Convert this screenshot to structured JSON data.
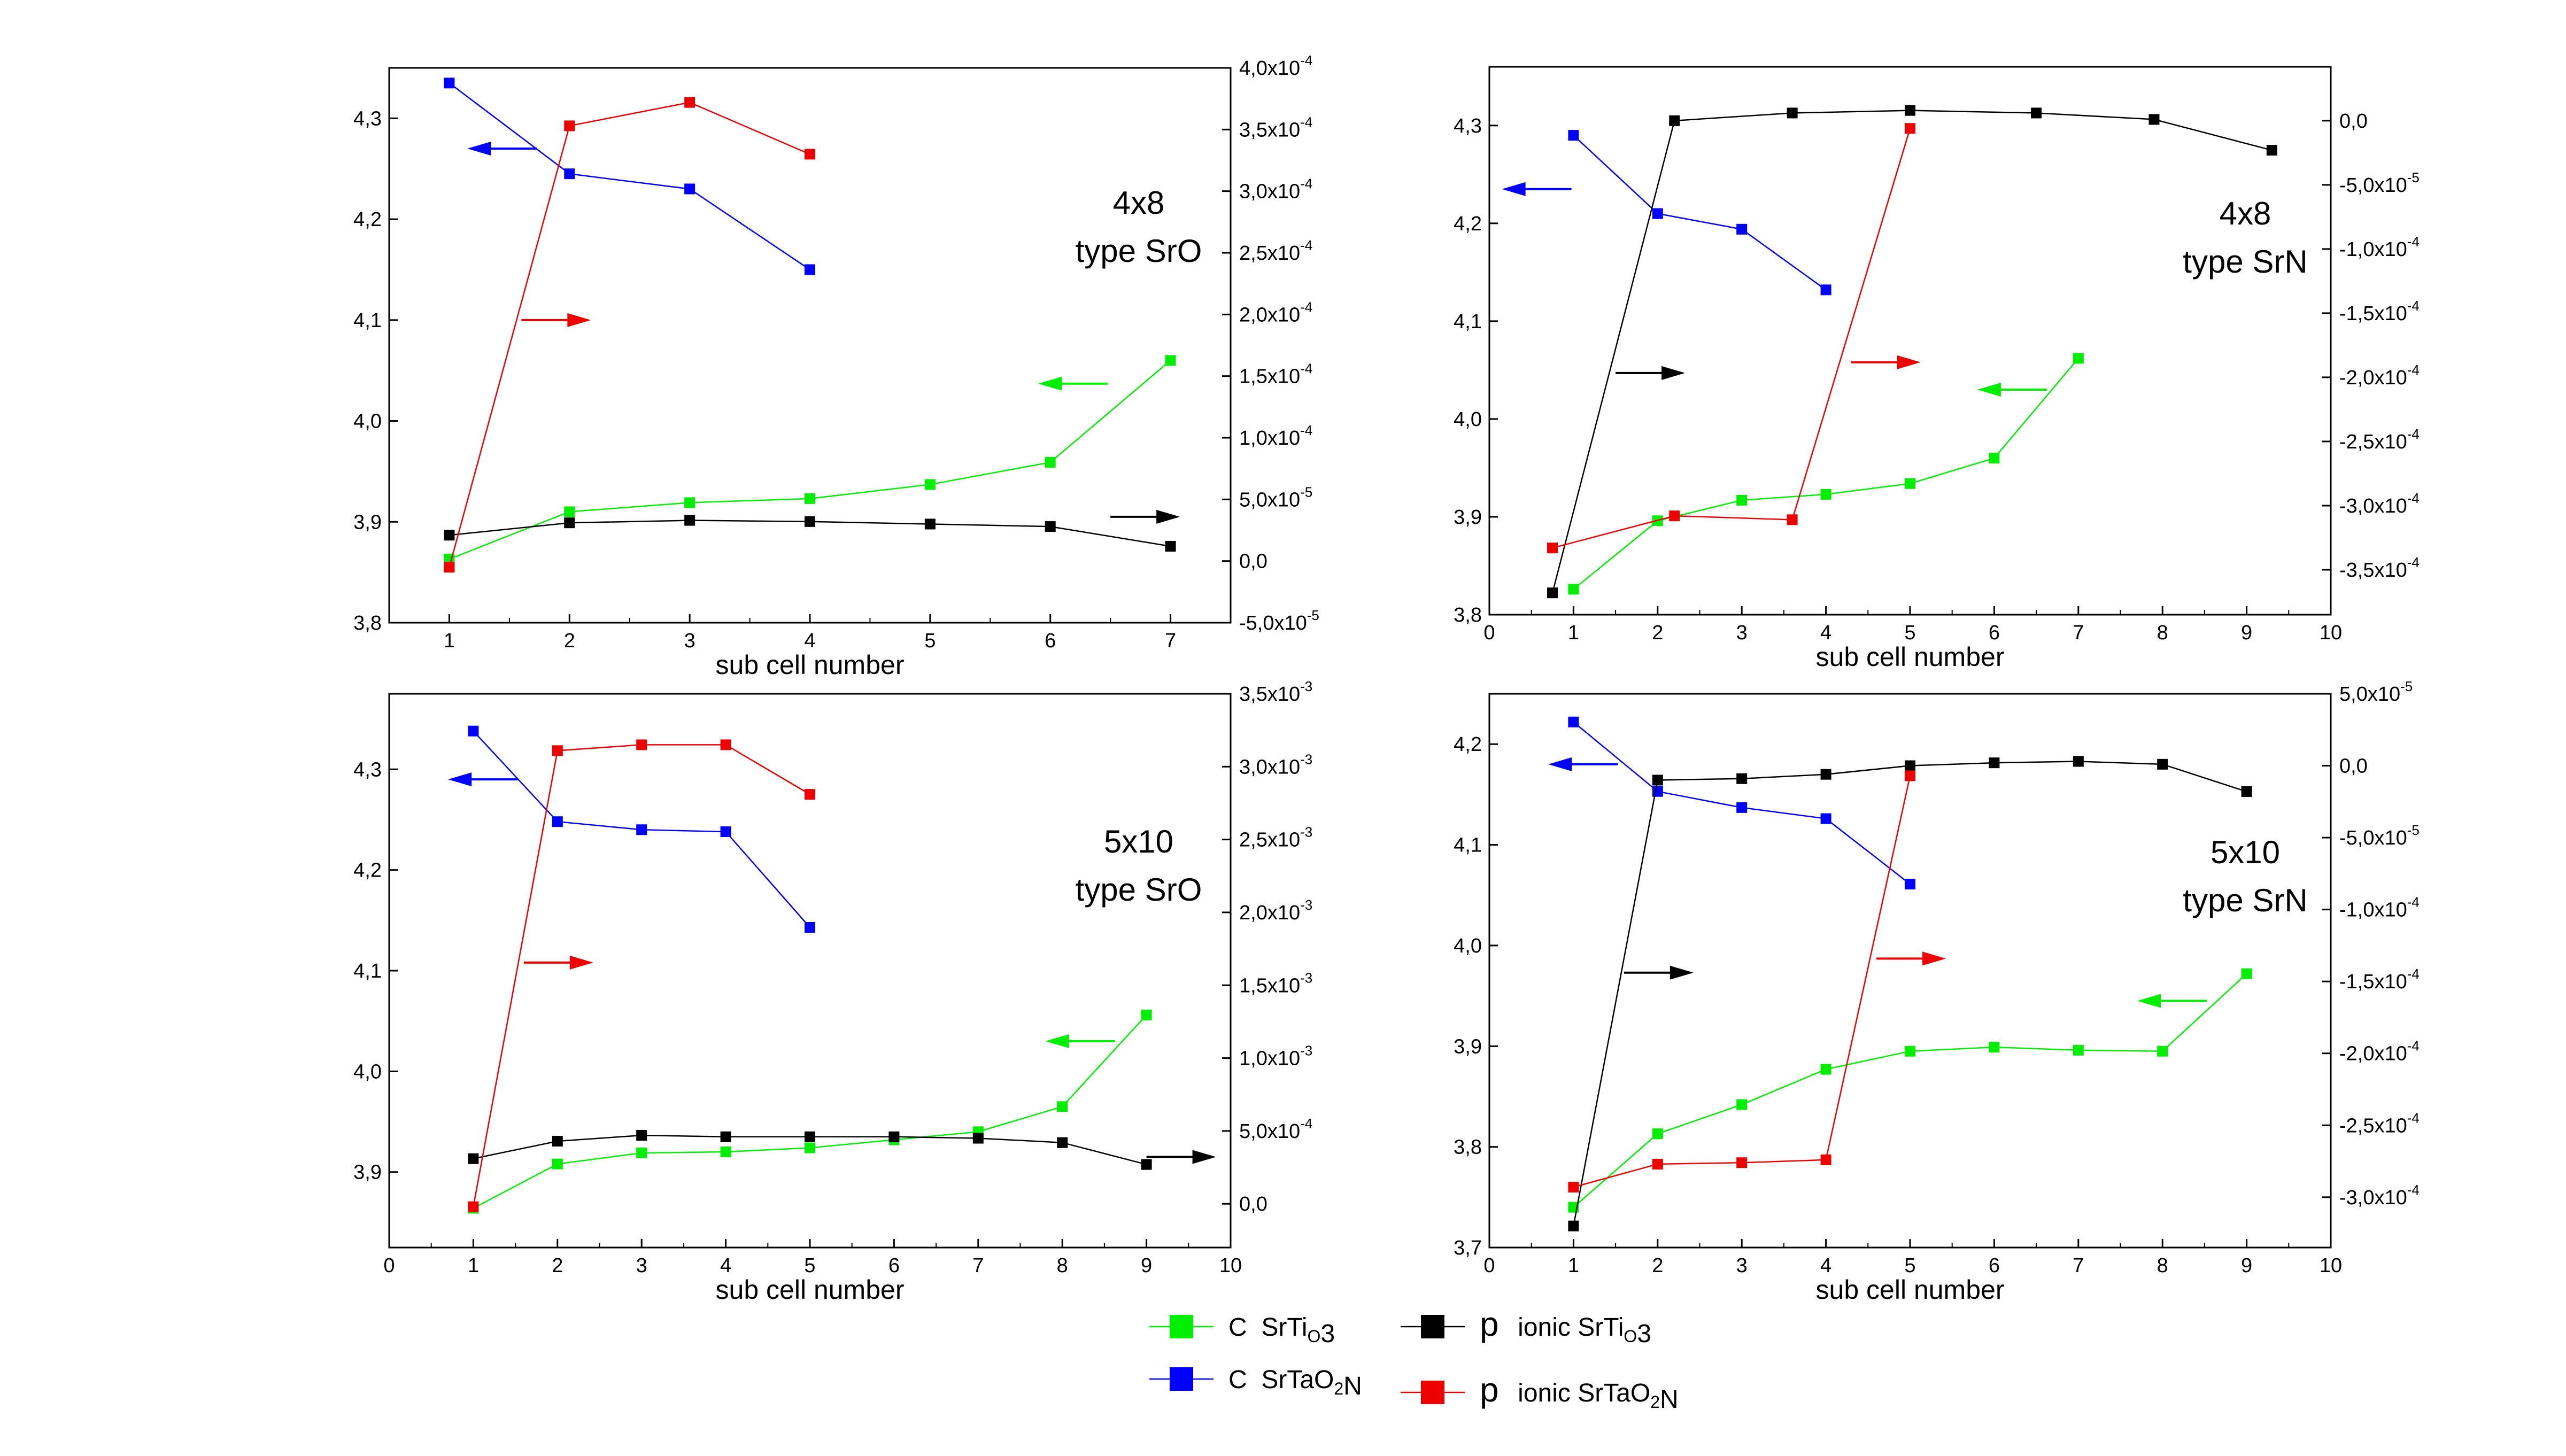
{
  "figure": {
    "legend": [
      {
        "sym": "C",
        "base": "SrTi",
        "sub": "3",
        "color": "#00ee00",
        "seq": [
          [
            "SrTi",
            ""
          ],
          [
            "O",
            "sub"
          ],
          [
            "3",
            ""
          ]
        ]
      },
      {
        "sym": "C",
        "base": "SrTaO",
        "sub": "2",
        "color": "#0000ff",
        "seq": [
          [
            "SrTaO",
            ""
          ],
          [
            "2",
            "sub"
          ],
          [
            "N",
            ""
          ]
        ]
      },
      {
        "sym": "p",
        "base": "ionic SrTi",
        "sub": "3",
        "color": "#000000",
        "seq": [
          [
            "ionic SrTi",
            ""
          ],
          [
            "O",
            "sub"
          ],
          [
            "3",
            ""
          ]
        ]
      },
      {
        "sym": "p",
        "base": "ionic SrTaO",
        "sub": "2",
        "color": "#ee0000",
        "seq": [
          [
            "ionic SrTaO",
            ""
          ],
          [
            "2",
            "sub"
          ],
          [
            "N",
            ""
          ]
        ]
      }
    ],
    "legend_labels": [
      "C SrTiO3",
      "C SrTaO2N",
      "p ionic SrTiO3",
      "p ionic SrTaO2N"
    ]
  },
  "chart_data": [
    {
      "type": "line",
      "title": [
        "4x8",
        "type SrO"
      ],
      "xlabel": "sub cell number",
      "xlim": [
        0.5,
        7.5
      ],
      "xticks": [
        1,
        2,
        3,
        4,
        5,
        6,
        7
      ],
      "ylim_left": [
        3.8,
        4.35
      ],
      "yticks_left": [
        "3,8",
        "3,9",
        "4,0",
        "4,1",
        "4,2",
        "4,3"
      ],
      "ytick_values_left": [
        3.8,
        3.9,
        4.0,
        4.1,
        4.2,
        4.3
      ],
      "ylim_right": [
        -5e-05,
        0.0004
      ],
      "ytick_values_right": [
        -5e-05,
        0,
        5e-05,
        0.0001,
        0.00015,
        0.0002,
        0.00025,
        0.0003,
        0.00035,
        0.0004
      ],
      "yticks_right": [
        [
          "-5,0x10",
          "-5"
        ],
        [
          "0,0",
          ""
        ],
        [
          "5,0x10",
          "-5"
        ],
        [
          "1,0x10",
          "-4"
        ],
        [
          "1,5x10",
          "-4"
        ],
        [
          "2,0x10",
          "-4"
        ],
        [
          "2,5x10",
          "-4"
        ],
        [
          "3,0x10",
          "-4"
        ],
        [
          "3,5x10",
          "-4"
        ],
        [
          "4,0x10",
          "-4"
        ]
      ],
      "series": [
        {
          "name": "C SrTiO3",
          "axis": "left",
          "color": "#00ee00",
          "x": [
            1,
            2,
            3,
            4,
            5,
            6,
            7
          ],
          "y": [
            3.863,
            3.91,
            3.919,
            3.923,
            3.937,
            3.959,
            4.06
          ]
        },
        {
          "name": "C SrTaO2N",
          "axis": "left",
          "color": "#0000ff",
          "x": [
            1,
            2,
            3,
            4
          ],
          "y": [
            4.335,
            4.245,
            4.23,
            4.15
          ]
        },
        {
          "name": "p ionic SrTiO3",
          "axis": "right",
          "color": "#000000",
          "x": [
            1,
            2,
            3,
            4,
            5,
            6,
            7
          ],
          "y": [
            2.1e-05,
            3.1e-05,
            3.3e-05,
            3.2e-05,
            3e-05,
            2.8e-05,
            1.2e-05
          ]
        },
        {
          "name": "p ionic SrTaO2N",
          "axis": "right",
          "color": "#ee0000",
          "x": [
            1,
            2,
            3,
            4
          ],
          "y": [
            -5e-06,
            0.000353,
            0.000372,
            0.00033
          ]
        }
      ],
      "arrows": [
        {
          "color": "#0000ff",
          "dir": "left",
          "x": 1.15,
          "y": 4.27
        },
        {
          "color": "#ee0000",
          "dir": "right",
          "x": 1.6,
          "y": 4.1
        },
        {
          "color": "#00ee00",
          "dir": "left",
          "x": 5.9,
          "y": 4.037
        },
        {
          "color": "#000000",
          "dir": "right",
          "x": 6.5,
          "y": 3.905
        }
      ]
    },
    {
      "type": "line",
      "title": [
        "4x8",
        "type SrN"
      ],
      "xlabel": "sub cell number",
      "xlim": [
        0,
        10
      ],
      "xticks": [
        0,
        1,
        2,
        3,
        4,
        5,
        6,
        7,
        8,
        9,
        10
      ],
      "ylim_left": [
        3.8,
        4.36
      ],
      "yticks_left": [
        "3,8",
        "3,9",
        "4,0",
        "4,1",
        "4,2",
        "4,3"
      ],
      "ytick_values_left": [
        3.8,
        3.9,
        4.0,
        4.1,
        4.2,
        4.3
      ],
      "ylim_right": [
        -0.000385,
        4.2e-05
      ],
      "ytick_values_right": [
        -0.00035,
        -0.0003,
        -0.00025,
        -0.0002,
        -0.00015,
        -0.0001,
        -5e-05,
        0
      ],
      "yticks_right": [
        [
          "-3,5x10",
          "-4"
        ],
        [
          "-3,0x10",
          "-4"
        ],
        [
          "-2,5x10",
          "-4"
        ],
        [
          "-2,0x10",
          "-4"
        ],
        [
          "-1,5x10",
          "-4"
        ],
        [
          "-1,0x10",
          "-4"
        ],
        [
          "-5,0x10",
          "-5"
        ],
        [
          "0,0",
          ""
        ]
      ],
      "series": [
        {
          "name": "C SrTiO3",
          "axis": "left",
          "color": "#00ee00",
          "x": [
            1,
            2,
            3,
            4,
            5,
            6,
            7
          ],
          "y": [
            3.826,
            3.896,
            3.917,
            3.923,
            3.934,
            3.96,
            4.062
          ]
        },
        {
          "name": "C SrTaO2N",
          "axis": "left",
          "color": "#0000ff",
          "x": [
            1,
            2,
            3,
            4
          ],
          "y": [
            4.29,
            4.21,
            4.194,
            4.132
          ]
        },
        {
          "name": "p ionic SrTiO3",
          "axis": "right",
          "color": "#000000",
          "x": [
            0.75,
            2.2,
            3.6,
            5,
            6.5,
            7.9,
            9.3
          ],
          "y": [
            -0.000368,
            0,
            6e-06,
            8e-06,
            6e-06,
            1e-06,
            -2.3e-05
          ]
        },
        {
          "name": "p ionic SrTaO2N",
          "axis": "right",
          "color": "#ee0000",
          "x": [
            0.75,
            2.2,
            3.6,
            5
          ],
          "y": [
            -0.000333,
            -0.000308,
            -0.000311,
            -6e-06
          ]
        }
      ],
      "arrows": [
        {
          "color": "#0000ff",
          "dir": "left",
          "x": 0.15,
          "y": 4.235
        },
        {
          "color": "#000000",
          "dir": "right",
          "x": 1.5,
          "y": 4.047
        },
        {
          "color": "#ee0000",
          "dir": "right",
          "x": 4.3,
          "y": 4.058
        },
        {
          "color": "#00ee00",
          "dir": "left",
          "x": 5.8,
          "y": 4.03
        }
      ]
    },
    {
      "type": "line",
      "title": [
        "5x10",
        "type SrO"
      ],
      "xlabel": "sub cell number",
      "xlim": [
        0,
        10
      ],
      "xticks": [
        0,
        1,
        2,
        3,
        4,
        5,
        6,
        7,
        8,
        9,
        10
      ],
      "ylim_left": [
        3.825,
        4.375
      ],
      "yticks_left": [
        "3,9",
        "4,0",
        "4,1",
        "4,2",
        "4,3"
      ],
      "ytick_values_left": [
        3.9,
        4.0,
        4.1,
        4.2,
        4.3
      ],
      "ylim_right": [
        -0.0003,
        0.0035
      ],
      "ytick_values_right": [
        0,
        0.0005,
        0.001,
        0.0015,
        0.002,
        0.0025,
        0.003,
        0.0035
      ],
      "yticks_right": [
        [
          "0,0",
          ""
        ],
        [
          "5,0x10",
          "-4"
        ],
        [
          "1,0x10",
          "-3"
        ],
        [
          "1,5x10",
          "-3"
        ],
        [
          "2,0x10",
          "-3"
        ],
        [
          "2,5x10",
          "-3"
        ],
        [
          "3,0x10",
          "-3"
        ],
        [
          "3,5x10",
          "-3"
        ]
      ],
      "series": [
        {
          "name": "C SrTiO3",
          "axis": "left",
          "color": "#00ee00",
          "x": [
            1,
            2,
            3,
            4,
            5,
            6,
            7,
            8,
            9
          ],
          "y": [
            3.864,
            3.908,
            3.919,
            3.92,
            3.924,
            3.932,
            3.94,
            3.965,
            4.056
          ]
        },
        {
          "name": "C SrTaO2N",
          "axis": "left",
          "color": "#0000ff",
          "x": [
            1,
            2,
            3,
            4,
            5
          ],
          "y": [
            4.338,
            4.248,
            4.24,
            4.238,
            4.143
          ]
        },
        {
          "name": "p ionic SrTiO3",
          "axis": "right",
          "color": "#000000",
          "x": [
            1,
            2,
            3,
            4,
            5,
            6,
            7,
            8,
            9
          ],
          "y": [
            0.00031,
            0.00043,
            0.00047,
            0.00046,
            0.00046,
            0.00046,
            0.00045,
            0.00042,
            0.00027
          ]
        },
        {
          "name": "p ionic SrTaO2N",
          "axis": "right",
          "color": "#ee0000",
          "x": [
            1,
            2,
            3,
            4,
            5
          ],
          "y": [
            -2e-05,
            0.00311,
            0.00315,
            0.00315,
            0.00281
          ]
        }
      ],
      "arrows": [
        {
          "color": "#0000ff",
          "dir": "left",
          "x": 0.7,
          "y": 4.29
        },
        {
          "color": "#ee0000",
          "dir": "right",
          "x": 1.6,
          "y": 4.108
        },
        {
          "color": "#00ee00",
          "dir": "left",
          "x": 7.8,
          "y": 4.03
        },
        {
          "color": "#000000",
          "dir": "right",
          "x": 9.0,
          "y": 3.915
        }
      ]
    },
    {
      "type": "line",
      "title": [
        "5x10",
        "type SrN"
      ],
      "xlabel": "sub cell number",
      "xlim": [
        0,
        10
      ],
      "xticks": [
        0,
        1,
        2,
        3,
        4,
        5,
        6,
        7,
        8,
        9,
        10
      ],
      "ylim_left": [
        3.7,
        4.25
      ],
      "yticks_left": [
        "3,7",
        "3,8",
        "3,9",
        "4,0",
        "4,1",
        "4,2"
      ],
      "ytick_values_left": [
        3.7,
        3.8,
        3.9,
        4.0,
        4.1,
        4.2
      ],
      "ylim_right": [
        -0.000335,
        5e-05
      ],
      "ytick_values_right": [
        -0.0003,
        -0.00025,
        -0.0002,
        -0.00015,
        -0.0001,
        -5e-05,
        0,
        5e-05
      ],
      "yticks_right": [
        [
          "-3,0x10",
          "-4"
        ],
        [
          "-2,5x10",
          "-4"
        ],
        [
          "-2,0x10",
          "-4"
        ],
        [
          "-1,5x10",
          "-4"
        ],
        [
          "-1,0x10",
          "-4"
        ],
        [
          "-5,0x10",
          "-5"
        ],
        [
          "0,0",
          ""
        ],
        [
          "5,0x10",
          "-5"
        ]
      ],
      "series": [
        {
          "name": "C SrTiO3",
          "axis": "left",
          "color": "#00ee00",
          "x": [
            1,
            2,
            3,
            4,
            5,
            6,
            7,
            8,
            9
          ],
          "y": [
            3.74,
            3.813,
            3.842,
            3.877,
            3.895,
            3.899,
            3.896,
            3.895,
            3.972
          ]
        },
        {
          "name": "C SrTaO2N",
          "axis": "left",
          "color": "#0000ff",
          "x": [
            1,
            2,
            3,
            4,
            5
          ],
          "y": [
            4.222,
            4.153,
            4.137,
            4.126,
            4.061
          ]
        },
        {
          "name": "p ionic SrTiO3",
          "axis": "right",
          "color": "#000000",
          "x": [
            1,
            2,
            3,
            4,
            5,
            6,
            7,
            8,
            9
          ],
          "y": [
            -0.00032,
            -1e-05,
            -9e-06,
            -6e-06,
            0,
            2e-06,
            3e-06,
            1e-06,
            -1.8e-05
          ]
        },
        {
          "name": "p ionic SrTaO2N",
          "axis": "right",
          "color": "#ee0000",
          "x": [
            1,
            2,
            3,
            4,
            5
          ],
          "y": [
            -0.000293,
            -0.000277,
            -0.000276,
            -0.000274,
            -7e-06
          ]
        }
      ],
      "arrows": [
        {
          "color": "#0000ff",
          "dir": "left",
          "x": 0.7,
          "y": 4.18
        },
        {
          "color": "#000000",
          "dir": "right",
          "x": 1.6,
          "y": 3.973
        },
        {
          "color": "#ee0000",
          "dir": "right",
          "x": 4.6,
          "y": 3.987
        },
        {
          "color": "#00ee00",
          "dir": "left",
          "x": 7.7,
          "y": 3.945
        }
      ]
    }
  ]
}
